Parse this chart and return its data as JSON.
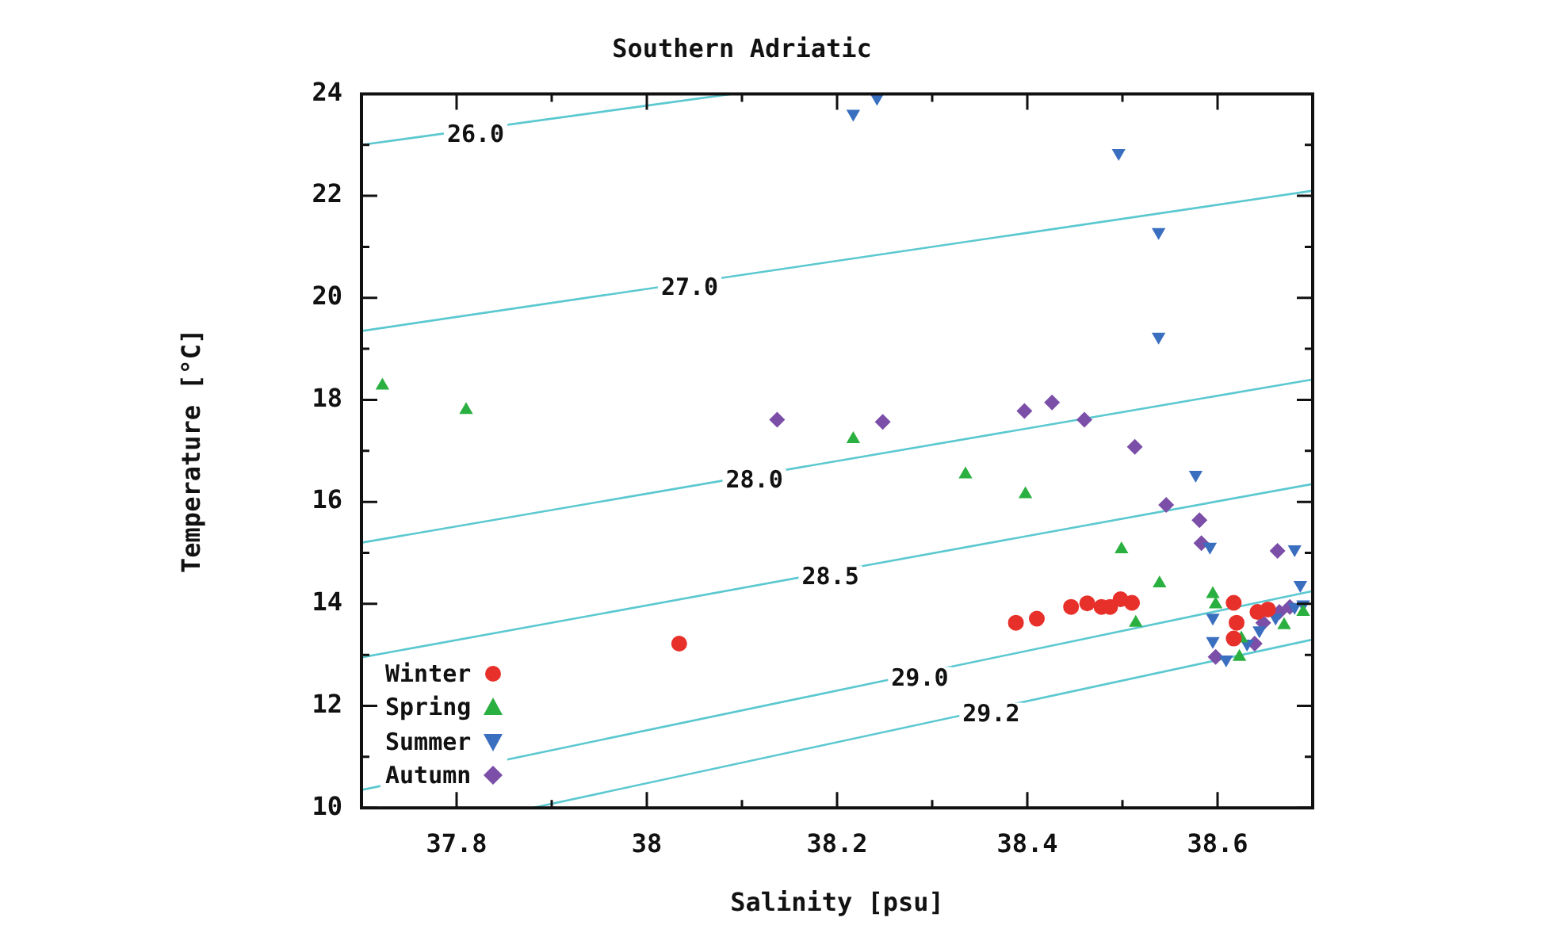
{
  "chart_data": {
    "type": "scatter",
    "title": "Southern Adriatic",
    "xlabel": "Salinity [psu]",
    "ylabel": "Temperature [°C]",
    "xlim": [
      37.7,
      38.7
    ],
    "xticks": [
      {
        "value": 37.7,
        "label": null
      },
      37.8,
      {
        "value": 37.9,
        "label": null
      },
      38,
      {
        "value": 38.1,
        "label": null
      },
      38.2,
      {
        "value": 38.3,
        "label": null
      },
      38.4,
      {
        "value": 38.5,
        "label": null
      },
      38.6,
      {
        "value": 38.7,
        "label": null
      }
    ],
    "ylim": [
      10,
      24
    ],
    "yticks": [
      10,
      {
        "value": 11,
        "label": null
      },
      12,
      {
        "value": 13,
        "label": null
      },
      14,
      {
        "value": 15,
        "label": null
      },
      16,
      {
        "value": 17,
        "label": null
      },
      18,
      {
        "value": 19,
        "label": null
      },
      20,
      {
        "value": 21,
        "label": null
      },
      22,
      {
        "value": 23,
        "label": null
      },
      24
    ],
    "grid": false,
    "legend": "bottom left",
    "series": [
      {
        "name": "Winter",
        "color": "#e8302a",
        "marker": "circle",
        "x": [
          38.034,
          38.388,
          38.41,
          38.446,
          38.463,
          38.478,
          38.487,
          38.498,
          38.51,
          38.617,
          38.62,
          38.617,
          38.642,
          38.653
        ],
        "values": [
          13.22,
          13.63,
          13.71,
          13.94,
          14.01,
          13.94,
          13.94,
          14.09,
          14.02,
          14.02,
          13.63,
          13.32,
          13.84,
          13.89
        ]
      },
      {
        "name": "Spring",
        "color": "#2ab040",
        "marker": "triangle",
        "x": [
          37.722,
          37.81,
          38.217,
          38.335,
          38.398,
          38.499,
          38.539,
          38.514,
          38.595,
          38.598,
          38.623,
          38.625,
          38.67,
          38.69
        ],
        "values": [
          18.28,
          17.8,
          17.23,
          16.54,
          16.15,
          15.07,
          14.4,
          13.63,
          14.19,
          13.99,
          12.96,
          13.32,
          13.58,
          13.84
        ]
      },
      {
        "name": "Summer",
        "color": "#3a6fc0",
        "marker": "triangle-down",
        "x": [
          38.217,
          38.242,
          38.496,
          38.538,
          38.538,
          38.577,
          38.592,
          38.681,
          38.687,
          38.595,
          38.595,
          38.609,
          38.631,
          38.644,
          38.661,
          38.681,
          38.69
        ],
        "values": [
          23.61,
          23.92,
          22.84,
          21.29,
          19.24,
          16.53,
          15.12,
          15.07,
          14.37,
          13.73,
          13.27,
          12.91,
          13.22,
          13.48,
          13.73,
          13.94,
          13.99
        ]
      },
      {
        "name": "Autumn",
        "color": "#7b4fa8",
        "marker": "diamond",
        "x": [
          38.137,
          38.248,
          38.397,
          38.426,
          38.46,
          38.513,
          38.546,
          38.581,
          38.583,
          38.663,
          38.598,
          38.639,
          38.648,
          38.665,
          38.676
        ],
        "values": [
          17.61,
          17.57,
          17.78,
          17.95,
          17.61,
          17.08,
          15.94,
          15.64,
          15.19,
          15.04,
          12.96,
          13.22,
          13.63,
          13.84,
          13.94
        ]
      },
      {
        "name": "26.0",
        "type": "line",
        "color": "#5bc8d0",
        "marker": "none",
        "x": [
          37.7,
          38.09
        ],
        "values": [
          23.0,
          24.0
        ]
      },
      {
        "name": "27.0",
        "type": "line",
        "color": "#5bc8d0",
        "marker": "none",
        "x": [
          37.7,
          38.7
        ],
        "values": [
          19.35,
          22.1
        ]
      },
      {
        "name": "28.0",
        "type": "line",
        "color": "#5bc8d0",
        "marker": "none",
        "x": [
          37.7,
          38.7
        ],
        "values": [
          15.2,
          18.4
        ]
      },
      {
        "name": "28.5",
        "type": "line",
        "color": "#5bc8d0",
        "marker": "none",
        "x": [
          37.7,
          38.7
        ],
        "values": [
          12.95,
          16.35
        ]
      },
      {
        "name": "29.0",
        "type": "line",
        "color": "#5bc8d0",
        "marker": "none",
        "x": [
          37.7,
          38.7
        ],
        "values": [
          10.35,
          14.25
        ]
      },
      {
        "name": "29.2",
        "type": "line",
        "color": "#5bc8d0",
        "marker": "none",
        "x": [
          37.88,
          38.7
        ],
        "values": [
          10.0,
          13.3
        ]
      }
    ]
  }
}
